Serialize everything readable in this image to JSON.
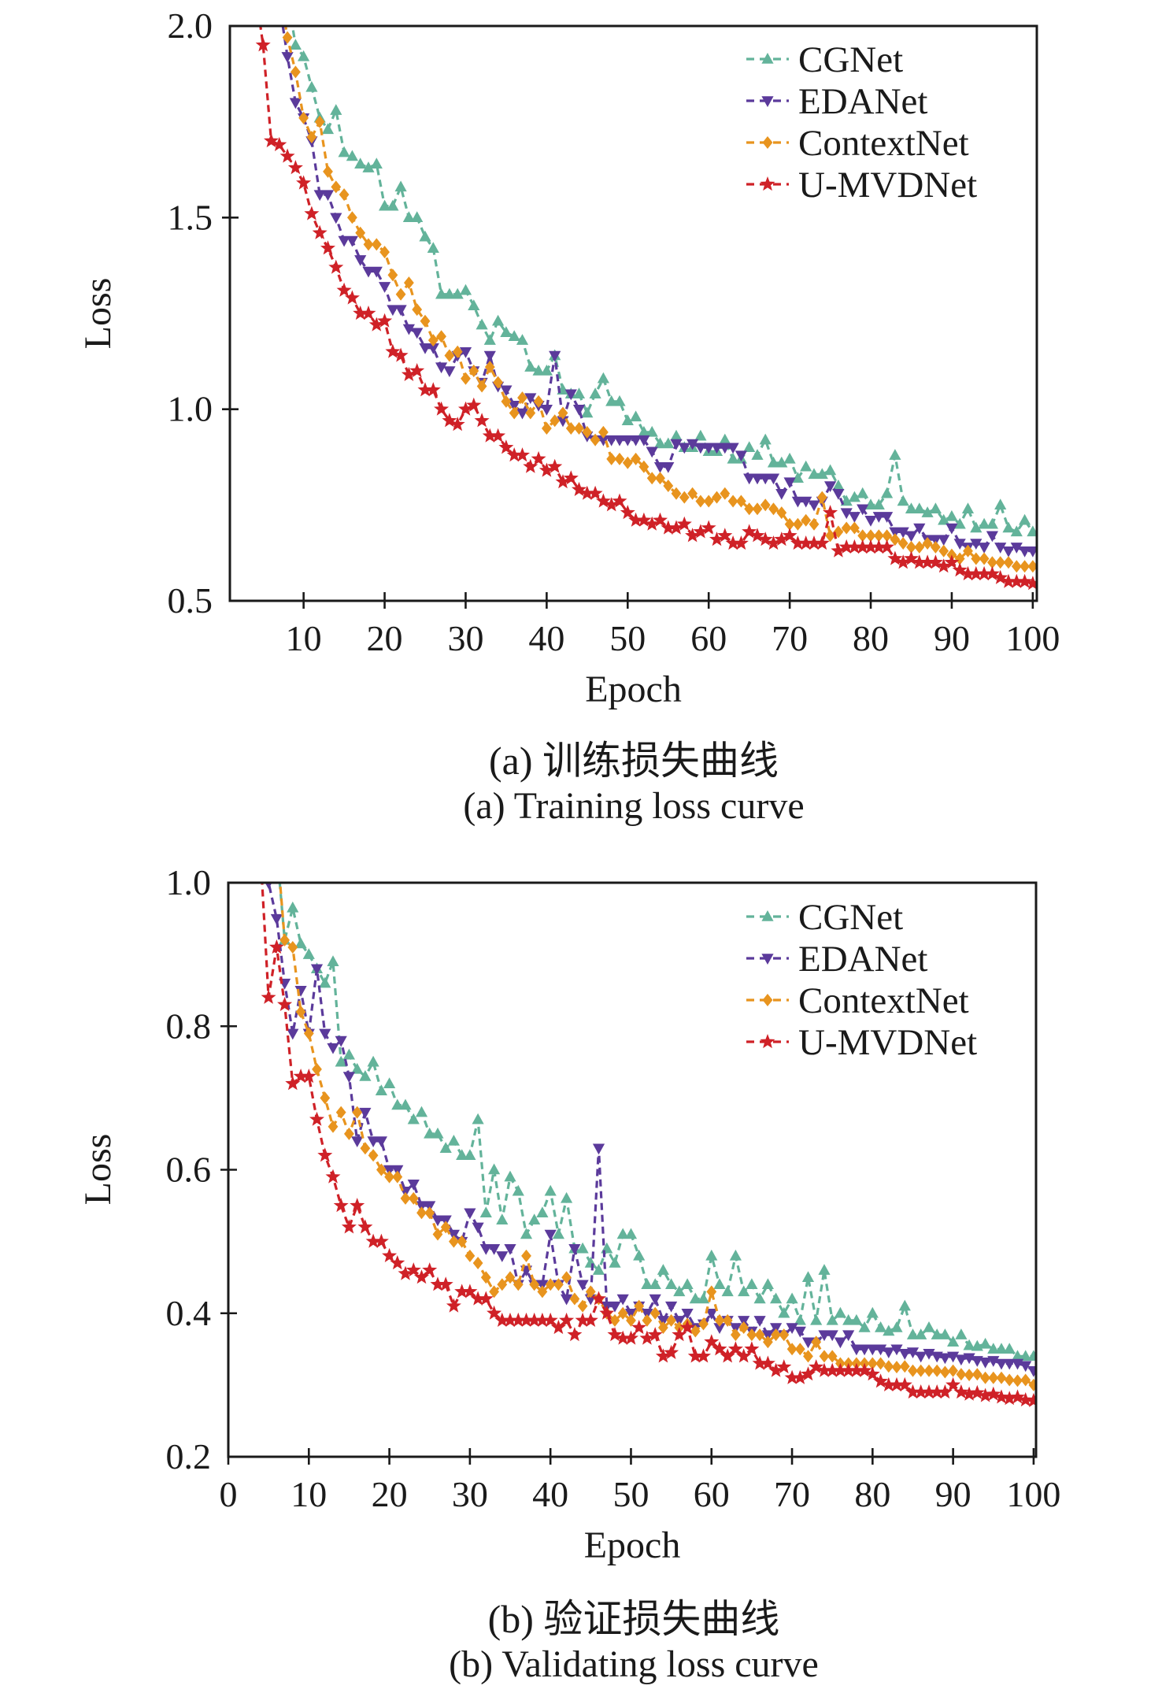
{
  "colors": {
    "teal": "#63b39a",
    "purple": "#5b3a9b",
    "orange": "#e8941e",
    "red": "#cf2127",
    "axis": "#1a1a1a",
    "background": "#ffffff"
  },
  "chart_data": [
    {
      "id": "training-loss",
      "type": "line",
      "caption_zh": "(a) 训练损失曲线",
      "caption_en": "(a) Training loss curve",
      "xlabel": "Epoch",
      "ylabel": "Loss",
      "xlim": [
        0.9,
        100.5
      ],
      "ylim": [
        0.5,
        2.0
      ],
      "grid": false,
      "legend_position": "top-right",
      "xticks": [
        10,
        20,
        30,
        40,
        50,
        60,
        70,
        80,
        90,
        100
      ],
      "xtick_labels": [
        "10",
        "20",
        "30",
        "40",
        "50",
        "60",
        "70",
        "80",
        "90",
        "100"
      ],
      "yticks": [
        0.5,
        1.0,
        1.5,
        2.0
      ],
      "ytick_labels": [
        "0.5",
        "1.0",
        "1.5",
        "2.0"
      ],
      "series": [
        {
          "name": "CGNet",
          "color_key": "teal",
          "marker": "triangle-up",
          "x0": 8,
          "dx": 1,
          "values": [
            2.08,
            1.95,
            1.92,
            1.84,
            1.76,
            1.73,
            1.78,
            1.67,
            1.66,
            1.64,
            1.63,
            1.64,
            1.53,
            1.53,
            1.58,
            1.5,
            1.5,
            1.45,
            1.42,
            1.3,
            1.3,
            1.3,
            1.31,
            1.27,
            1.22,
            1.18,
            1.23,
            1.2,
            1.19,
            1.18,
            1.11,
            1.1,
            1.1,
            1.14,
            1.05,
            1.04,
            1.04,
            0.99,
            1.04,
            1.08,
            1.02,
            1.02,
            0.97,
            0.98,
            0.94,
            0.94,
            0.91,
            0.91,
            0.93,
            0.9,
            0.9,
            0.93,
            0.89,
            0.89,
            0.92,
            0.87,
            0.87,
            0.9,
            0.88,
            0.92,
            0.86,
            0.86,
            0.87,
            0.82,
            0.85,
            0.83,
            0.83,
            0.84,
            0.8,
            0.76,
            0.77,
            0.78,
            0.75,
            0.75,
            0.78,
            0.88,
            0.76,
            0.74,
            0.74,
            0.73,
            0.74,
            0.71,
            0.72,
            0.7,
            0.74,
            0.69,
            0.7,
            0.7,
            0.75,
            0.69,
            0.68,
            0.71,
            0.68
          ]
        },
        {
          "name": "EDANet",
          "color_key": "purple",
          "marker": "triangle-down",
          "x0": 7,
          "dx": 1,
          "values": [
            2.06,
            1.92,
            1.8,
            1.76,
            1.7,
            1.56,
            1.56,
            1.5,
            1.44,
            1.44,
            1.39,
            1.36,
            1.36,
            1.32,
            1.26,
            1.26,
            1.21,
            1.2,
            1.16,
            1.16,
            1.11,
            1.1,
            1.14,
            1.15,
            1.1,
            1.07,
            1.14,
            1.06,
            1.05,
            1.01,
            0.99,
            1.03,
            1.01,
            1.0,
            1.14,
            0.97,
            1.04,
            1.0,
            0.93,
            0.92,
            0.92,
            0.92,
            0.92,
            0.92,
            0.92,
            0.92,
            0.89,
            0.85,
            0.85,
            0.91,
            0.9,
            0.91,
            0.9,
            0.9,
            0.9,
            0.9,
            0.9,
            0.88,
            0.82,
            0.82,
            0.82,
            0.82,
            0.78,
            0.81,
            0.76,
            0.76,
            0.75,
            0.76,
            0.8,
            0.78,
            0.73,
            0.72,
            0.74,
            0.71,
            0.72,
            0.72,
            0.68,
            0.68,
            0.67,
            0.69,
            0.66,
            0.66,
            0.66,
            0.69,
            0.65,
            0.64,
            0.65,
            0.64,
            0.67,
            0.64,
            0.63,
            0.64,
            0.63,
            0.63
          ]
        },
        {
          "name": "ContextNet",
          "color_key": "orange",
          "marker": "diamond",
          "x0": 7,
          "dx": 1,
          "values": [
            2.1,
            1.97,
            1.88,
            1.76,
            1.71,
            1.75,
            1.62,
            1.58,
            1.56,
            1.5,
            1.46,
            1.43,
            1.43,
            1.41,
            1.35,
            1.3,
            1.33,
            1.26,
            1.23,
            1.18,
            1.19,
            1.14,
            1.15,
            1.08,
            1.1,
            1.06,
            1.11,
            1.07,
            1.02,
            0.99,
            1.03,
            0.99,
            1.02,
            0.95,
            0.97,
            0.99,
            0.95,
            0.95,
            0.94,
            0.92,
            0.94,
            0.87,
            0.87,
            0.86,
            0.87,
            0.85,
            0.82,
            0.82,
            0.8,
            0.78,
            0.77,
            0.78,
            0.76,
            0.76,
            0.77,
            0.78,
            0.76,
            0.76,
            0.74,
            0.74,
            0.75,
            0.74,
            0.73,
            0.7,
            0.7,
            0.71,
            0.7,
            0.77,
            0.67,
            0.68,
            0.69,
            0.69,
            0.67,
            0.67,
            0.67,
            0.67,
            0.66,
            0.65,
            0.64,
            0.64,
            0.65,
            0.64,
            0.63,
            0.62,
            0.61,
            0.63,
            0.61,
            0.61,
            0.6,
            0.6,
            0.6,
            0.59,
            0.59,
            0.59
          ]
        },
        {
          "name": "U-MVDNet",
          "color_key": "red",
          "marker": "star",
          "x0": 4,
          "dx": 1,
          "values": [
            2.1,
            1.95,
            1.7,
            1.69,
            1.66,
            1.63,
            1.59,
            1.51,
            1.46,
            1.42,
            1.37,
            1.31,
            1.29,
            1.25,
            1.25,
            1.22,
            1.23,
            1.15,
            1.14,
            1.09,
            1.1,
            1.05,
            1.05,
            1.0,
            0.97,
            0.96,
            1.0,
            1.01,
            0.97,
            0.93,
            0.93,
            0.9,
            0.88,
            0.88,
            0.85,
            0.87,
            0.84,
            0.85,
            0.81,
            0.82,
            0.79,
            0.78,
            0.78,
            0.76,
            0.75,
            0.76,
            0.73,
            0.71,
            0.71,
            0.7,
            0.71,
            0.69,
            0.69,
            0.7,
            0.67,
            0.68,
            0.69,
            0.66,
            0.67,
            0.65,
            0.65,
            0.68,
            0.67,
            0.66,
            0.65,
            0.66,
            0.67,
            0.65,
            0.65,
            0.65,
            0.65,
            0.73,
            0.63,
            0.64,
            0.64,
            0.64,
            0.64,
            0.64,
            0.64,
            0.61,
            0.6,
            0.61,
            0.6,
            0.6,
            0.6,
            0.59,
            0.6,
            0.58,
            0.57,
            0.57,
            0.57,
            0.57,
            0.56,
            0.55,
            0.55,
            0.55,
            0.545
          ]
        }
      ]
    },
    {
      "id": "validating-loss",
      "type": "line",
      "caption_zh": "(b) 验证损失曲线",
      "caption_en": "(b) Validating loss curve",
      "xlabel": "Epoch",
      "ylabel": "Loss",
      "xlim": [
        0,
        100.3
      ],
      "ylim": [
        0.2,
        1.0
      ],
      "grid": false,
      "legend_position": "top-right",
      "xticks": [
        0,
        10,
        20,
        30,
        40,
        50,
        60,
        70,
        80,
        90,
        100
      ],
      "xtick_labels": [
        "0",
        "10",
        "20",
        "30",
        "40",
        "50",
        "60",
        "70",
        "80",
        "90",
        "100"
      ],
      "yticks": [
        0.2,
        0.4,
        0.6,
        0.8,
        1.0
      ],
      "ytick_labels": [
        "0.2",
        "0.4",
        "0.6",
        "0.8",
        "1.0"
      ],
      "series": [
        {
          "name": "CGNet",
          "color_key": "teal",
          "marker": "triangle-up",
          "x0": 6,
          "dx": 1,
          "values": [
            1.05,
            0.92,
            0.965,
            0.915,
            0.9,
            0.88,
            0.86,
            0.89,
            0.75,
            0.76,
            0.74,
            0.73,
            0.75,
            0.71,
            0.72,
            0.69,
            0.69,
            0.67,
            0.68,
            0.65,
            0.65,
            0.63,
            0.64,
            0.62,
            0.62,
            0.67,
            0.54,
            0.6,
            0.53,
            0.59,
            0.57,
            0.51,
            0.53,
            0.54,
            0.57,
            0.51,
            0.56,
            0.49,
            0.49,
            0.47,
            0.46,
            0.49,
            0.47,
            0.51,
            0.51,
            0.48,
            0.44,
            0.44,
            0.46,
            0.44,
            0.43,
            0.44,
            0.42,
            0.42,
            0.48,
            0.44,
            0.43,
            0.48,
            0.43,
            0.44,
            0.42,
            0.44,
            0.42,
            0.4,
            0.42,
            0.39,
            0.45,
            0.39,
            0.46,
            0.39,
            0.4,
            0.39,
            0.39,
            0.38,
            0.4,
            0.38,
            0.375,
            0.38,
            0.41,
            0.37,
            0.37,
            0.38,
            0.37,
            0.37,
            0.36,
            0.37,
            0.355,
            0.354,
            0.357,
            0.35,
            0.35,
            0.35,
            0.34,
            0.34,
            0.34
          ]
        },
        {
          "name": "EDANet",
          "color_key": "purple",
          "marker": "triangle-down",
          "x0": 4,
          "dx": 1,
          "values": [
            1.06,
            1.0,
            0.95,
            0.86,
            0.79,
            0.85,
            0.79,
            0.88,
            0.79,
            0.77,
            0.78,
            0.73,
            0.64,
            0.68,
            0.64,
            0.64,
            0.6,
            0.6,
            0.57,
            0.58,
            0.55,
            0.55,
            0.53,
            0.53,
            0.51,
            0.5,
            0.54,
            0.52,
            0.49,
            0.49,
            0.48,
            0.49,
            0.44,
            0.46,
            0.44,
            0.44,
            0.51,
            0.44,
            0.42,
            0.49,
            0.44,
            0.42,
            0.63,
            0.41,
            0.41,
            0.42,
            0.4,
            0.41,
            0.4,
            0.42,
            0.39,
            0.41,
            0.39,
            0.4,
            0.38,
            0.385,
            0.4,
            0.38,
            0.39,
            0.38,
            0.39,
            0.375,
            0.39,
            0.37,
            0.38,
            0.37,
            0.38,
            0.375,
            0.36,
            0.36,
            0.37,
            0.37,
            0.36,
            0.37,
            0.35,
            0.35,
            0.35,
            0.35,
            0.346,
            0.35,
            0.344,
            0.346,
            0.34,
            0.344,
            0.34,
            0.338,
            0.34,
            0.336,
            0.338,
            0.334,
            0.332,
            0.334,
            0.33,
            0.33,
            0.33,
            0.327,
            0.32
          ]
        },
        {
          "name": "ContextNet",
          "color_key": "orange",
          "marker": "diamond",
          "x0": 6,
          "dx": 1,
          "values": [
            1.06,
            0.92,
            0.91,
            0.82,
            0.79,
            0.74,
            0.7,
            0.66,
            0.68,
            0.65,
            0.68,
            0.63,
            0.62,
            0.6,
            0.59,
            0.59,
            0.56,
            0.56,
            0.54,
            0.54,
            0.51,
            0.52,
            0.5,
            0.5,
            0.48,
            0.47,
            0.45,
            0.43,
            0.44,
            0.45,
            0.44,
            0.48,
            0.44,
            0.43,
            0.44,
            0.44,
            0.45,
            0.42,
            0.41,
            0.43,
            0.42,
            0.4,
            0.39,
            0.4,
            0.39,
            0.41,
            0.39,
            0.4,
            0.38,
            0.39,
            0.38,
            0.385,
            0.375,
            0.385,
            0.43,
            0.39,
            0.39,
            0.37,
            0.38,
            0.37,
            0.37,
            0.36,
            0.37,
            0.37,
            0.35,
            0.35,
            0.34,
            0.36,
            0.34,
            0.34,
            0.33,
            0.33,
            0.33,
            0.33,
            0.33,
            0.33,
            0.326,
            0.325,
            0.326,
            0.32,
            0.32,
            0.32,
            0.32,
            0.318,
            0.32,
            0.315,
            0.314,
            0.315,
            0.31,
            0.31,
            0.31,
            0.307,
            0.306,
            0.307,
            0.3
          ]
        },
        {
          "name": "U-MVDNet",
          "color_key": "red",
          "marker": "star",
          "x0": 4,
          "dx": 1,
          "values": [
            1.04,
            0.84,
            0.91,
            0.83,
            0.72,
            0.73,
            0.73,
            0.67,
            0.62,
            0.59,
            0.55,
            0.52,
            0.55,
            0.52,
            0.5,
            0.5,
            0.48,
            0.47,
            0.455,
            0.46,
            0.45,
            0.46,
            0.44,
            0.44,
            0.41,
            0.43,
            0.43,
            0.42,
            0.42,
            0.4,
            0.39,
            0.39,
            0.39,
            0.39,
            0.39,
            0.39,
            0.39,
            0.38,
            0.39,
            0.37,
            0.39,
            0.39,
            0.42,
            0.4,
            0.37,
            0.365,
            0.365,
            0.38,
            0.365,
            0.37,
            0.34,
            0.345,
            0.37,
            0.38,
            0.34,
            0.34,
            0.36,
            0.35,
            0.34,
            0.35,
            0.34,
            0.35,
            0.33,
            0.33,
            0.32,
            0.325,
            0.31,
            0.31,
            0.315,
            0.325,
            0.32,
            0.32,
            0.32,
            0.32,
            0.32,
            0.32,
            0.315,
            0.305,
            0.3,
            0.3,
            0.3,
            0.29,
            0.29,
            0.29,
            0.29,
            0.29,
            0.3,
            0.29,
            0.287,
            0.289,
            0.285,
            0.287,
            0.283,
            0.281,
            0.283,
            0.279,
            0.278
          ]
        }
      ]
    }
  ]
}
